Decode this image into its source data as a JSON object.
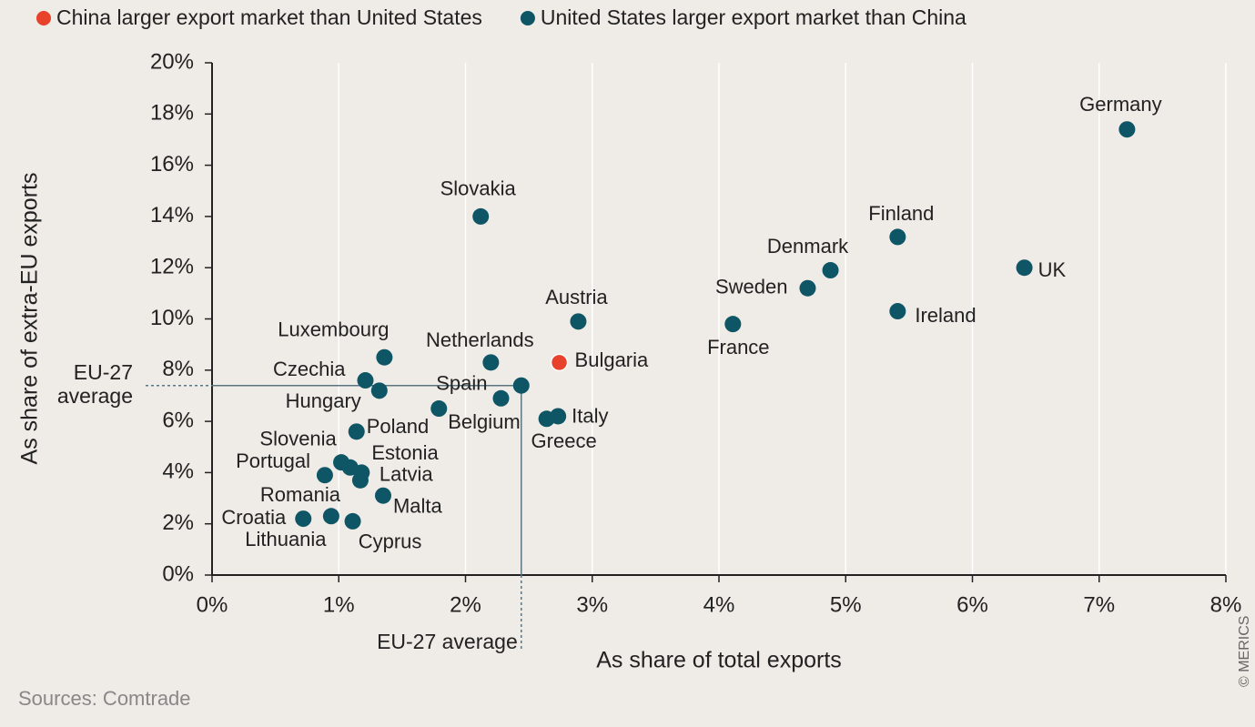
{
  "chart_data": {
    "type": "scatter",
    "xlabel": "As share of total exports",
    "ylabel": "As share of extra-EU exports",
    "source": "Sources: Comtrade",
    "credit": "© MERICS",
    "xlim": [
      0,
      8
    ],
    "ylim": [
      0,
      20
    ],
    "xticks": [
      {
        "value": 0,
        "label": "0%"
      },
      {
        "value": 1,
        "label": "1%"
      },
      {
        "value": 2,
        "label": "2%"
      },
      {
        "value": 3,
        "label": "3%"
      },
      {
        "value": 4,
        "label": "4%"
      },
      {
        "value": 5,
        "label": "5%"
      },
      {
        "value": 6,
        "label": "6%"
      },
      {
        "value": 7,
        "label": "7%"
      },
      {
        "value": 8,
        "label": "8%"
      }
    ],
    "yticks": [
      {
        "value": 0,
        "label": "0%"
      },
      {
        "value": 2,
        "label": "2%"
      },
      {
        "value": 4,
        "label": "4%"
      },
      {
        "value": 6,
        "label": "6%"
      },
      {
        "value": 8,
        "label": "8%"
      },
      {
        "value": 10,
        "label": "10%"
      },
      {
        "value": 12,
        "label": "12%"
      },
      {
        "value": 14,
        "label": "14%"
      },
      {
        "value": 16,
        "label": "16%"
      },
      {
        "value": 18,
        "label": "18%"
      },
      {
        "value": 20,
        "label": "20%"
      }
    ],
    "grid": true,
    "legend": "top",
    "series": [
      {
        "name": "China larger export market than United States",
        "color": "#e8412c",
        "labels": [
          "Bulgaria"
        ],
        "x": [
          2.74
        ],
        "values": [
          8.3
        ]
      },
      {
        "name": "United States larger export market than China",
        "color": "#0e5566",
        "labels": [
          "Germany",
          "Slovakia",
          "Finland",
          "Denmark",
          "UK",
          "Sweden",
          "Ireland",
          "Austria",
          "France",
          "Luxembourg",
          "Netherlands",
          "Czechia",
          "Hungary",
          "Spain",
          "Belgium",
          "Poland",
          "Italy",
          "Greece",
          "Portugal",
          "Slovenia",
          "Estonia",
          "Latvia",
          "Romania",
          "Malta",
          "Croatia",
          "Lithuania",
          "Cyprus"
        ],
        "x": [
          7.22,
          2.12,
          5.41,
          4.88,
          6.41,
          4.7,
          5.41,
          2.89,
          4.11,
          1.36,
          2.2,
          1.21,
          1.32,
          2.28,
          1.79,
          1.14,
          2.73,
          2.64,
          1.02,
          1.09,
          1.18,
          1.17,
          0.89,
          1.35,
          0.72,
          0.94,
          1.11
        ],
        "values": [
          17.4,
          14.0,
          13.2,
          11.9,
          12.0,
          11.2,
          10.3,
          9.9,
          9.8,
          8.5,
          8.3,
          7.6,
          7.2,
          6.9,
          6.5,
          5.6,
          6.2,
          6.1,
          4.4,
          4.2,
          4.0,
          3.7,
          3.9,
          3.1,
          2.2,
          2.3,
          2.1
        ]
      }
    ],
    "eu_average": {
      "x": 2.44,
      "y": 7.4,
      "x_label": "EU-27 average",
      "y_label": [
        "EU-27",
        "average"
      ]
    }
  }
}
